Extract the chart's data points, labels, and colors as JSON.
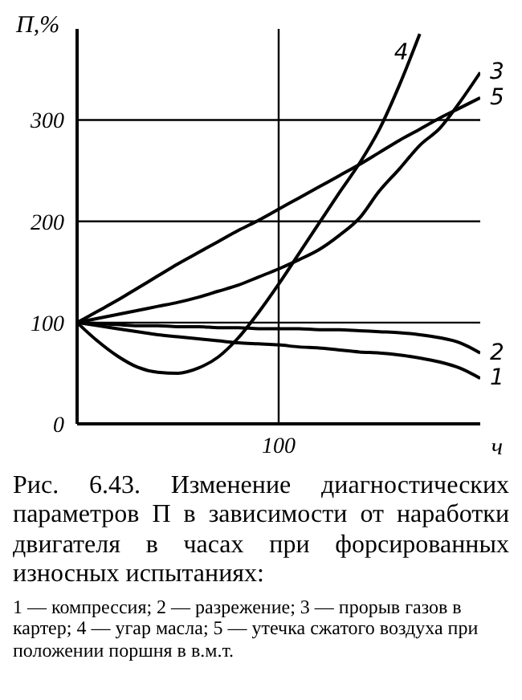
{
  "chart_data": {
    "type": "line",
    "xlabel": "ч",
    "categories": [
      null,
      null,
      null,
      null,
      null,
      null,
      null,
      null,
      null,
      null,
      "100",
      null,
      null,
      null,
      null,
      null,
      null,
      null,
      null,
      null,
      null
    ],
    "ylim": [
      0,
      390
    ],
    "yticks": [
      0,
      100,
      200,
      300
    ],
    "grid": true,
    "marker": "none",
    "line_style": "solid",
    "series": [
      {
        "name": "1",
        "color": "#000000",
        "values": [
          100,
          97,
          94,
          91,
          88,
          86,
          84,
          82,
          80,
          79,
          78,
          76,
          75,
          73,
          71,
          70,
          68,
          65,
          61,
          55,
          45
        ]
      },
      {
        "name": "2",
        "color": "#000000",
        "values": [
          100,
          99,
          98,
          97,
          97,
          96,
          96,
          95,
          95,
          94,
          94,
          94,
          93,
          93,
          92,
          91,
          90,
          88,
          85,
          80,
          70
        ]
      },
      {
        "name": "3",
        "color": "#000000",
        "values": [
          100,
          104,
          108,
          112,
          116,
          120,
          125,
          131,
          137,
          145,
          153,
          162,
          172,
          186,
          203,
          230,
          252,
          275,
          292,
          318,
          347
        ]
      },
      {
        "name": "4",
        "color": "#000000",
        "values": [
          100,
          82,
          67,
          56,
          51,
          50,
          55,
          66,
          85,
          110,
          138,
          168,
          198,
          228,
          257,
          291,
          335,
          385,
          null,
          null,
          null
        ]
      },
      {
        "name": "5",
        "color": "#000000",
        "values": [
          100,
          111,
          122,
          134,
          146,
          158,
          169,
          180,
          191,
          201,
          212,
          223,
          234,
          245,
          256,
          268,
          280,
          291,
          302,
          312,
          322
        ]
      }
    ],
    "ylabel": "П,%",
    "annotations": [
      "Рис. 6.43. Изменение диагностических параметров П в зависимости от наработки двигателя в часах при форсированных износных испытаниях:",
      "1 — компрессия; 2 — разрежение; 3 — прорыв газов в картер; 4 — угар масла; 5 — утечка сжатого воздуха при положении поршня в в.м.т."
    ]
  }
}
